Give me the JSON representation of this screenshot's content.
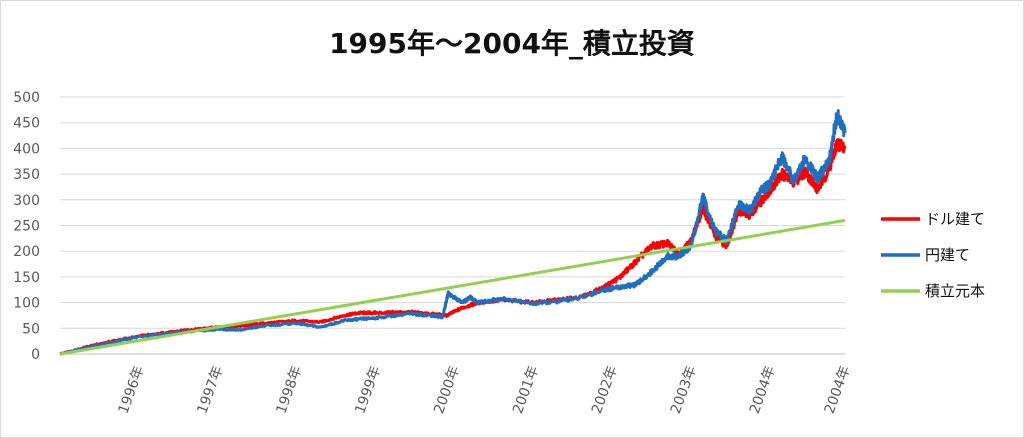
{
  "chart_data": {
    "type": "line",
    "title": "1995年～2004年_積立投資",
    "xlabel": "",
    "ylabel": "",
    "ylim": [
      0,
      500
    ],
    "yticks": [
      0,
      50,
      100,
      150,
      200,
      250,
      300,
      350,
      400,
      450,
      500
    ],
    "x_tick_labels": [
      "1996年",
      "1997年",
      "1998年",
      "1999年",
      "2000年",
      "2001年",
      "2002年",
      "2003年",
      "2004年",
      "2004年"
    ],
    "x_tick_positions": [
      1996,
      1997,
      1998,
      1999,
      2000,
      2001,
      2002,
      2003,
      2004,
      2004.95
    ],
    "xlim": [
      1995.0,
      2004.95
    ],
    "grid": true,
    "legend_position": "right",
    "series": [
      {
        "name": "ドル建て",
        "color": "#ff0000",
        "x": [
          1995.0,
          1995.5,
          1996.0,
          1996.5,
          1997.0,
          1997.3,
          1997.6,
          1998.0,
          1998.3,
          1998.6,
          1998.8,
          1999.0,
          1999.4,
          1999.7,
          1999.9,
          2000.1,
          2000.3,
          2000.6,
          2001.0,
          2001.3,
          2001.6,
          2001.9,
          2002.1,
          2002.3,
          2002.5,
          2002.7,
          2002.85,
          2003.0,
          2003.15,
          2003.3,
          2003.45,
          2003.6,
          2003.75,
          2003.9,
          2004.0,
          2004.15,
          2004.3,
          2004.45,
          2004.6,
          2004.75,
          2004.85,
          2004.95
        ],
        "values": [
          0,
          20,
          35,
          45,
          52,
          55,
          60,
          65,
          62,
          75,
          80,
          80,
          82,
          78,
          75,
          90,
          100,
          105,
          100,
          105,
          110,
          130,
          150,
          180,
          210,
          215,
          195,
          220,
          285,
          230,
          210,
          280,
          270,
          300,
          320,
          350,
          335,
          355,
          320,
          360,
          410,
          400
        ]
      },
      {
        "name": "円建て",
        "color": "#1f6fc1",
        "x": [
          1995.0,
          1995.5,
          1996.0,
          1996.5,
          1997.0,
          1997.3,
          1997.6,
          1998.0,
          1998.3,
          1998.6,
          1998.8,
          1999.0,
          1999.4,
          1999.7,
          1999.85,
          1999.92,
          2000.1,
          2000.2,
          2000.3,
          2000.6,
          2001.0,
          2001.3,
          2001.6,
          2001.9,
          2002.1,
          2002.3,
          2002.5,
          2002.7,
          2002.85,
          2003.0,
          2003.15,
          2003.3,
          2003.45,
          2003.6,
          2003.75,
          2003.9,
          2004.0,
          2004.15,
          2004.3,
          2004.45,
          2004.6,
          2004.75,
          2004.85,
          2004.95
        ],
        "values": [
          0,
          18,
          33,
          42,
          48,
          47,
          55,
          60,
          52,
          65,
          68,
          70,
          78,
          75,
          72,
          118,
          100,
          110,
          100,
          108,
          98,
          102,
          110,
          125,
          130,
          135,
          160,
          190,
          190,
          210,
          305,
          240,
          220,
          290,
          280,
          320,
          330,
          385,
          340,
          380,
          340,
          380,
          465,
          430
        ]
      },
      {
        "name": "積立元本",
        "color": "#92d050",
        "x": [
          1995.0,
          2004.95
        ],
        "values": [
          0,
          260
        ]
      }
    ]
  }
}
